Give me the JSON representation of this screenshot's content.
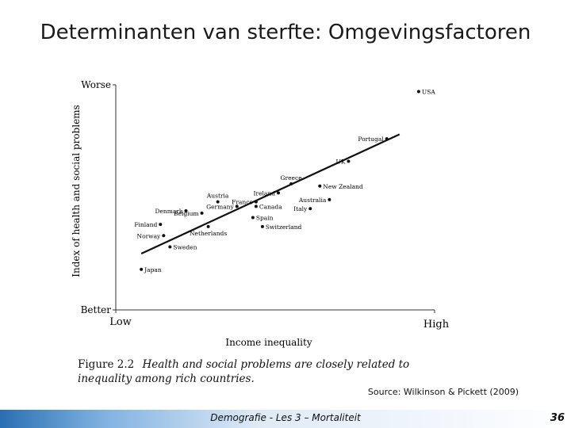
{
  "slide": {
    "title": "Determinanten van sterfte: Omgevingsfactoren",
    "source": "Source: Wilkinson & Pickett (2009)",
    "footer": "Demografie - Les 3 – Mortaliteit",
    "page_number": "36"
  },
  "figure": {
    "label": "Figure 2.2",
    "caption": "Health and social problems are closely related to inequality among rich countries."
  },
  "chart_data": {
    "type": "scatter",
    "title": "",
    "xlabel": "Income inequality",
    "ylabel": "Index of health and social problems",
    "x_tick_labels": [
      "Low",
      "High"
    ],
    "y_tick_labels": [
      "Better",
      "Worse"
    ],
    "xlim": [
      0,
      100
    ],
    "ylim": [
      0,
      100
    ],
    "grid": false,
    "points": [
      {
        "label": "USA",
        "x": 95,
        "y": 97
      },
      {
        "label": "Portugal",
        "x": 85,
        "y": 76
      },
      {
        "label": "UK",
        "x": 73,
        "y": 66
      },
      {
        "label": "New Zealand",
        "x": 64,
        "y": 55
      },
      {
        "label": "Greece",
        "x": 55,
        "y": 56
      },
      {
        "label": "Ireland",
        "x": 51,
        "y": 52
      },
      {
        "label": "Australia",
        "x": 67,
        "y": 49
      },
      {
        "label": "Italy",
        "x": 61,
        "y": 45
      },
      {
        "label": "France",
        "x": 44,
        "y": 48
      },
      {
        "label": "Canada",
        "x": 44,
        "y": 46
      },
      {
        "label": "Austria",
        "x": 32,
        "y": 48
      },
      {
        "label": "Germany",
        "x": 38,
        "y": 46
      },
      {
        "label": "Denmark",
        "x": 22,
        "y": 44
      },
      {
        "label": "Belgium",
        "x": 27,
        "y": 43
      },
      {
        "label": "Spain",
        "x": 43,
        "y": 41
      },
      {
        "label": "Switzerland",
        "x": 46,
        "y": 37
      },
      {
        "label": "Finland",
        "x": 14,
        "y": 38
      },
      {
        "label": "Norway",
        "x": 15,
        "y": 33
      },
      {
        "label": "Netherlands",
        "x": 29,
        "y": 37
      },
      {
        "label": "Sweden",
        "x": 17,
        "y": 28
      },
      {
        "label": "Japan",
        "x": 8,
        "y": 18
      }
    ],
    "trendline": {
      "x": [
        8,
        89
      ],
      "y": [
        25,
        78
      ]
    }
  }
}
